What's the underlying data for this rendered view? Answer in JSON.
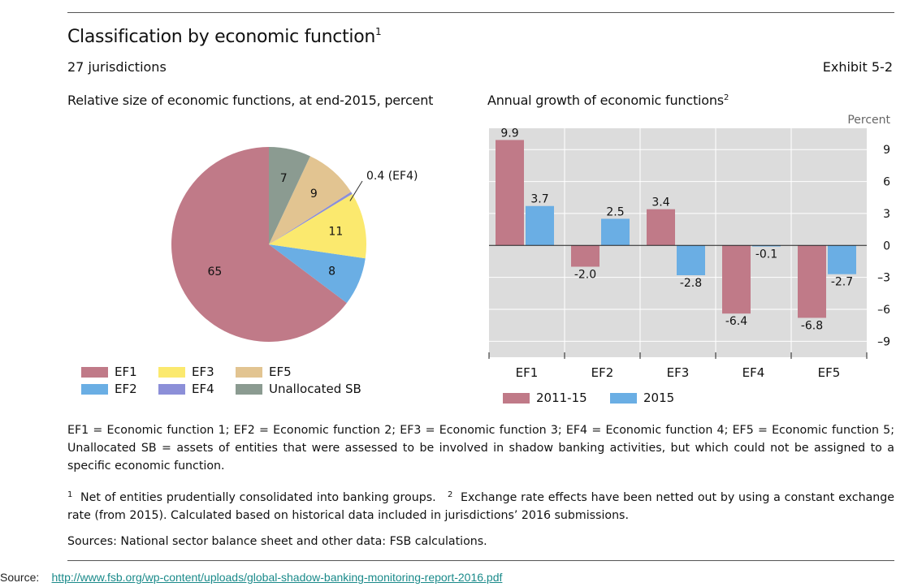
{
  "header": {
    "title": "Classification by economic function",
    "title_sup": "1",
    "subtitle": "27 jurisdictions",
    "exhibit": "Exhibit 5-2"
  },
  "colors": {
    "EF1": "#c07a88",
    "EF2": "#6aaee4",
    "EF3": "#fbe96e",
    "EF4": "#8c8fd8",
    "EF5": "#e2c491",
    "Unallocated SB": "#8b9b91",
    "bar_2011_15": "#c07a88",
    "bar_2015": "#6aaee4",
    "plot_bg": "#dcdcdc"
  },
  "chart_data": [
    {
      "type": "pie",
      "title": "Relative size of economic functions, at end-2015, percent",
      "slices": [
        {
          "label": "EF1",
          "value": 65,
          "display": "65"
        },
        {
          "label": "EF2",
          "value": 8,
          "display": "8"
        },
        {
          "label": "EF3",
          "value": 11,
          "display": "11"
        },
        {
          "label": "EF4",
          "value": 0.4,
          "display": "0.4 (EF4)"
        },
        {
          "label": "EF5",
          "value": 9,
          "display": "9"
        },
        {
          "label": "Unallocated SB",
          "value": 7,
          "display": "7"
        }
      ],
      "legend": [
        "EF1",
        "EF3",
        "EF5",
        "EF2",
        "EF4",
        "Unallocated SB"
      ],
      "legend_placement": "bottom"
    },
    {
      "type": "bar",
      "title": "Annual growth of economic functions",
      "title_sup": "2",
      "ylabel": "Percent",
      "categories": [
        "EF1",
        "EF2",
        "EF3",
        "EF4",
        "EF5"
      ],
      "series": [
        {
          "name": "2011-15",
          "values": [
            9.9,
            -2.0,
            3.4,
            -6.4,
            -6.8
          ],
          "labels": [
            "9.9",
            "-2.0",
            "3.4",
            "-6.4",
            "-6.8"
          ]
        },
        {
          "name": "2015",
          "values": [
            3.7,
            2.5,
            -2.8,
            -0.1,
            -2.7
          ],
          "labels": [
            "3.7",
            "2.5",
            "-2.8",
            "-0.1",
            "-2.7"
          ]
        }
      ],
      "ylim": [
        -10.5,
        11
      ],
      "yticks": [
        9,
        6,
        3,
        0,
        -3,
        -6,
        -9
      ],
      "ytick_labels": [
        "9",
        "6",
        "3",
        "0",
        "–3",
        "–6",
        "–9"
      ],
      "grid": true,
      "legend_placement": "bottom"
    }
  ],
  "notes": {
    "defs": "EF1 = Economic function 1; EF2 = Economic function 2; EF3 = Economic function 3; EF4 = Economic function 4; EF5 = Economic function 5; Unallocated SB = assets of entities that were assessed to be involved in shadow banking activities, but which could not be assigned to a specific economic function.",
    "fn1_mark": "1",
    "fn1": "Net of entities prudentially consolidated into banking groups.",
    "fn2_mark": "2",
    "fn2": "Exchange rate effects have been netted out by using a constant exchange rate (from 2015). Calculated based on historical data included in jurisdictions’ 2016 submissions.",
    "sources": "Sources: National sector balance sheet and other data: FSB calculations."
  },
  "source": {
    "label": "Source:",
    "url": "http://www.fsb.org/wp-content/uploads/global-shadow-banking-monitoring-report-2016.pdf"
  }
}
